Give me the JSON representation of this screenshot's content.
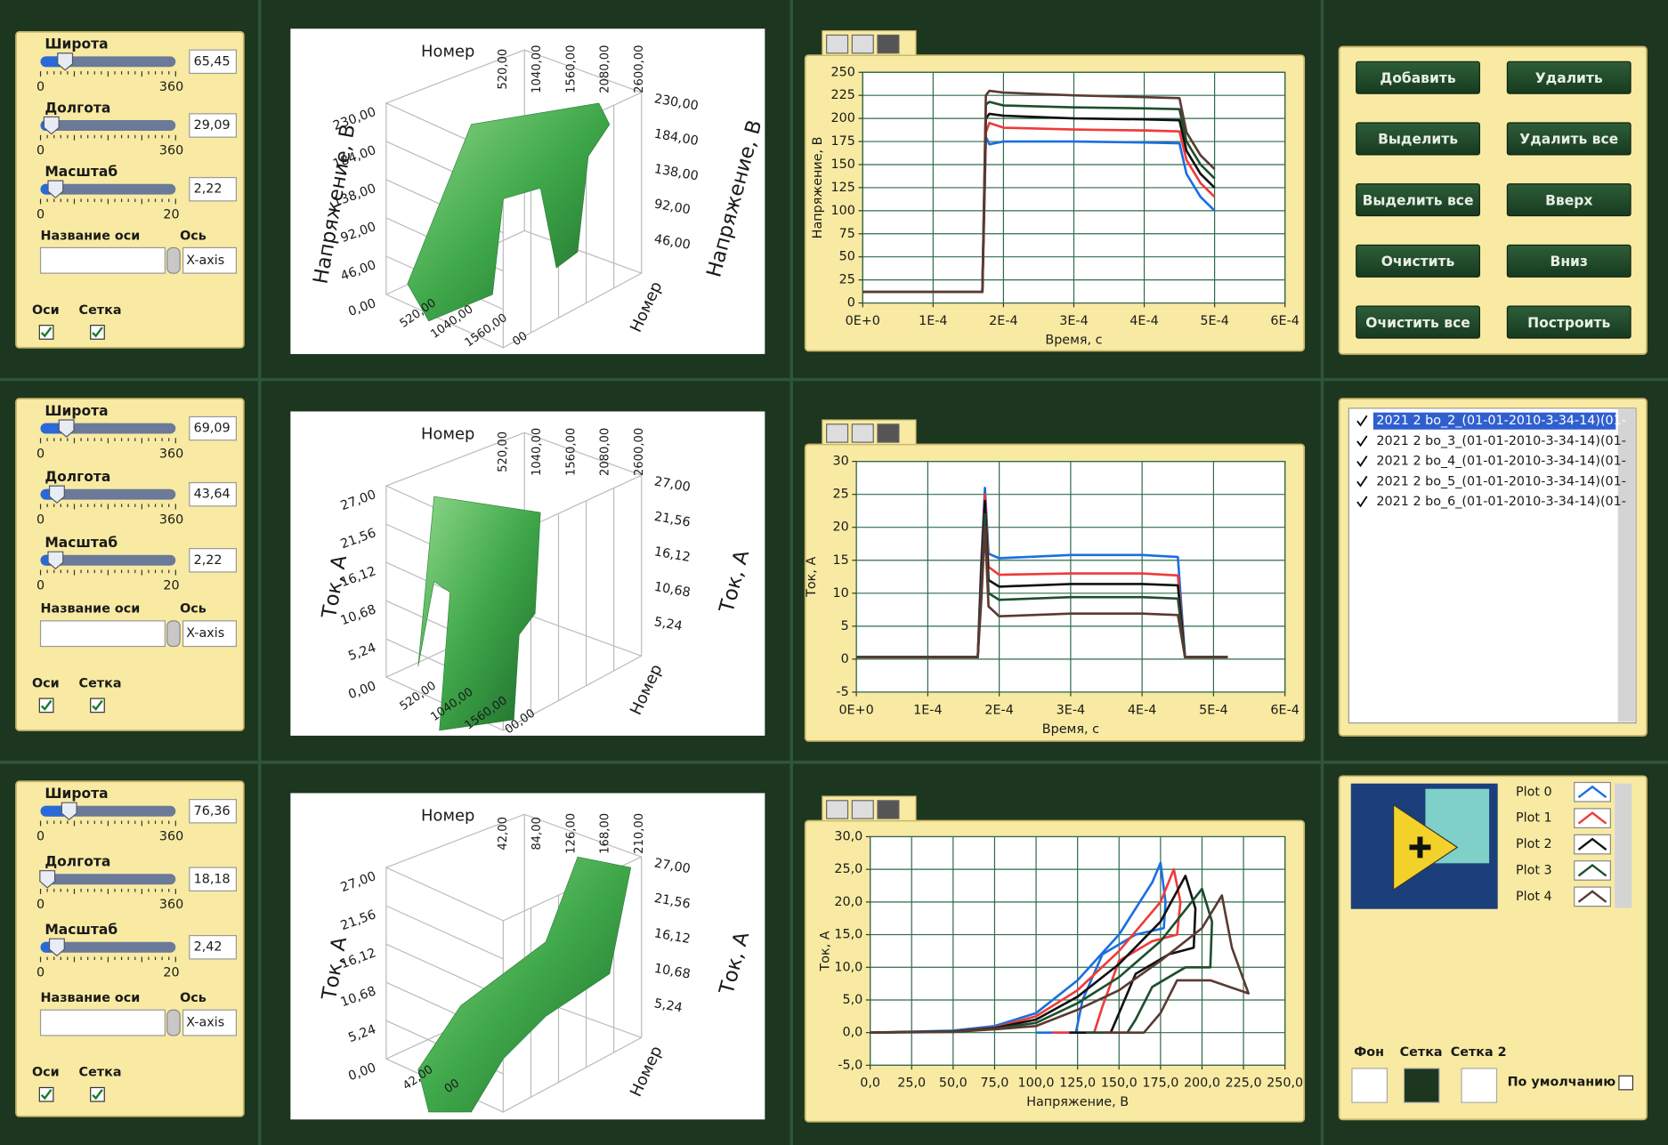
{
  "rows": [
    {
      "controls": {
        "sliders": [
          {
            "name": "Широта",
            "min": 0,
            "max": 360,
            "value": {
              "value": 65.45,
              "label": "65,45"
            }
          },
          {
            "name": "Долгота",
            "min": 0,
            "max": 360,
            "value": {
              "value": 29.09,
              "label": "29,09"
            }
          },
          {
            "name": "Масштаб",
            "min": 0,
            "max": 20,
            "value": {
              "value": 2.22,
              "label": "2,22"
            }
          }
        ],
        "axis_name": "Название оси",
        "axis": "Ось",
        "axis_value": "X-axis",
        "axes_checkbox": "Оси",
        "grid_checkbox": "Сетка"
      },
      "plot3d": {
        "z_title": "Напряжение, В",
        "z_left": [
          "230,00",
          "184,00",
          "138,00",
          "92,00",
          "46,00",
          "0,00"
        ],
        "z_right": [
          "230,00",
          "184,00",
          "138,00",
          "92,00",
          "46,00"
        ],
        "x_title": "Номер",
        "x_top": [
          "520,00",
          "1040,00",
          "1560,00",
          "2080,00",
          "2600,00"
        ],
        "x_bottom": [
          "520,00",
          "1040,00",
          "1560,00",
          "00"
        ]
      },
      "chart": {
        "type": "line",
        "ylabel": "Напряжение, В",
        "xlabel": "Время, с",
        "grid": true,
        "xlim": [
          0,
          0.0006
        ],
        "ylim": [
          0,
          250
        ],
        "xticks": [
          {
            "value": 0,
            "label": "0E+0"
          },
          {
            "value": 0.0001,
            "label": "1E-4"
          },
          {
            "value": 0.0002,
            "label": "2E-4"
          },
          {
            "value": 0.0003,
            "label": "3E-4"
          },
          {
            "value": 0.0004,
            "label": "4E-4"
          },
          {
            "value": 0.0005,
            "label": "5E-4"
          },
          {
            "value": 0.0006,
            "label": "6E-4"
          }
        ],
        "yticks": [
          0,
          25,
          50,
          75,
          100,
          125,
          150,
          175,
          200,
          225,
          250
        ],
        "x": [
          0,
          0.00017,
          0.000175,
          0.00018,
          0.0002,
          0.0003,
          0.0004,
          0.00045,
          0.00046,
          0.00048,
          0.0005
        ],
        "series": [
          {
            "color": "#1a6fe0",
            "values": [
              12,
              12,
              180,
              172,
              175,
              175,
              174,
              173,
              140,
              115,
              100
            ]
          },
          {
            "color": "#f03a3a",
            "values": [
              12,
              12,
              185,
              195,
              190,
              188,
              187,
              186,
              155,
              130,
              115
            ]
          },
          {
            "color": "#111111",
            "values": [
              12,
              12,
              200,
              205,
              203,
              200,
              199,
              198,
              165,
              140,
              125
            ]
          },
          {
            "color": "#1d4f2c",
            "values": [
              12,
              12,
              215,
              218,
              214,
              212,
              211,
              210,
              175,
              150,
              135
            ]
          },
          {
            "color": "#5a3a32",
            "values": [
              12,
              12,
              225,
              230,
              228,
              225,
              223,
              222,
              185,
              160,
              145
            ]
          }
        ]
      }
    },
    {
      "controls": {
        "sliders": [
          {
            "name": "Широта",
            "min": 0,
            "max": 360,
            "value": {
              "value": 69.09,
              "label": "69,09"
            }
          },
          {
            "name": "Долгота",
            "min": 0,
            "max": 360,
            "value": {
              "value": 43.64,
              "label": "43,64"
            }
          },
          {
            "name": "Масштаб",
            "min": 0,
            "max": 20,
            "value": {
              "value": 2.22,
              "label": "2,22"
            }
          }
        ],
        "axis_name": "Название оси",
        "axis": "Ось",
        "axis_value": "X-axis",
        "axes_checkbox": "Оси",
        "grid_checkbox": "Сетка"
      },
      "plot3d": {
        "z_title": "Ток, А",
        "z_left": [
          "27,00",
          "21,56",
          "16,12",
          "10,68",
          "5,24",
          "0,00"
        ],
        "z_right": [
          "27,00",
          "21,56",
          "16,12",
          "10,68",
          "5,24"
        ],
        "x_title": "Номер",
        "x_top": [
          "520,00",
          "1040,00",
          "1560,00",
          "2080,00",
          "2600,00"
        ],
        "x_bottom": [
          "520,00",
          "1040,00",
          "1560,00",
          "00,00"
        ]
      },
      "chart": {
        "type": "line",
        "ylabel": "Ток, А",
        "xlabel": "Время, с",
        "grid": true,
        "xlim": [
          0,
          0.0006
        ],
        "ylim": [
          -5,
          30
        ],
        "xticks": [
          {
            "value": 0,
            "label": "0E+0"
          },
          {
            "value": 0.0001,
            "label": "1E-4"
          },
          {
            "value": 0.0002,
            "label": "2E-4"
          },
          {
            "value": 0.0003,
            "label": "3E-4"
          },
          {
            "value": 0.0004,
            "label": "4E-4"
          },
          {
            "value": 0.0005,
            "label": "5E-4"
          },
          {
            "value": 0.0006,
            "label": "6E-4"
          }
        ],
        "yticks": [
          -5,
          0,
          5,
          10,
          15,
          20,
          25,
          30
        ],
        "x": [
          0,
          0.00017,
          0.000175,
          0.00018,
          0.000185,
          0.0002,
          0.0003,
          0.0004,
          0.00045,
          0.00046,
          0.00052
        ],
        "series": [
          {
            "color": "#1a6fe0",
            "values": [
              0.3,
              0.3,
              15,
              26,
              16,
              15.3,
              15.8,
              15.8,
              15.5,
              0.3,
              0.3
            ]
          },
          {
            "color": "#f03a3a",
            "values": [
              0.3,
              0.3,
              14,
              25,
              14,
              12.8,
              13,
              13,
              12.7,
              0.3,
              0.3
            ]
          },
          {
            "color": "#111111",
            "values": [
              0.3,
              0.3,
              13,
              24,
              12,
              11,
              11.4,
              11.4,
              11.2,
              0.3,
              0.3
            ]
          },
          {
            "color": "#1d4f2c",
            "values": [
              0.3,
              0.3,
              11,
              22,
              10,
              9,
              9.4,
              9.4,
              9.2,
              0.3,
              0.3
            ]
          },
          {
            "color": "#5a3a32",
            "values": [
              0.3,
              0.3,
              9,
              20,
              8,
              6.5,
              6.9,
              6.9,
              6.7,
              0.3,
              0.3
            ]
          }
        ]
      }
    },
    {
      "controls": {
        "sliders": [
          {
            "name": "Широта",
            "min": 0,
            "max": 360,
            "value": {
              "value": 76.36,
              "label": "76,36"
            }
          },
          {
            "name": "Долгота",
            "min": 0,
            "max": 360,
            "value": {
              "value": 18.18,
              "label": "18,18"
            }
          },
          {
            "name": "Масштаб",
            "min": 0,
            "max": 20,
            "value": {
              "value": 2.42,
              "label": "2,42"
            }
          }
        ],
        "axis_name": "Название оси",
        "axis": "Ось",
        "axis_value": "X-axis",
        "axes_checkbox": "Оси",
        "grid_checkbox": "Сетка"
      },
      "plot3d": {
        "z_title": "Ток, А",
        "z_left": [
          "27,00",
          "21,56",
          "16,12",
          "10,68",
          "5,24",
          "0,00"
        ],
        "z_right": [
          "27,00",
          "21,56",
          "16,12",
          "10,68",
          "5,24"
        ],
        "x_title": "Номер",
        "x_top": [
          "42,00",
          "84,00",
          "126,00",
          "168,00",
          "210,00"
        ],
        "x_bottom": [
          "42,00",
          "00"
        ]
      },
      "chart": {
        "type": "scatter-line",
        "ylabel": "Ток, А",
        "xlabel": "Напряжение, В",
        "grid": true,
        "xlim": [
          0,
          250
        ],
        "ylim": [
          -5,
          30
        ],
        "xticks": [
          {
            "value": 0,
            "label": "0,0"
          },
          {
            "value": 25,
            "label": "25,0"
          },
          {
            "value": 50,
            "label": "50,0"
          },
          {
            "value": 75,
            "label": "75,0"
          },
          {
            "value": 100,
            "label": "100,0"
          },
          {
            "value": 125,
            "label": "125,0"
          },
          {
            "value": 150,
            "label": "150,0"
          },
          {
            "value": 175,
            "label": "175,0"
          },
          {
            "value": 200,
            "label": "200,0"
          },
          {
            "value": 225,
            "label": "225,0"
          },
          {
            "value": 250,
            "label": "250,0"
          }
        ],
        "yticks": [
          {
            "value": -5,
            "label": "-5,0"
          },
          {
            "value": 0,
            "label": "0,0"
          },
          {
            "value": 5,
            "label": "5,0"
          },
          {
            "value": 10,
            "label": "10,0"
          },
          {
            "value": 15,
            "label": "15,0"
          },
          {
            "value": 20,
            "label": "20,0"
          },
          {
            "value": 25,
            "label": "25,0"
          },
          {
            "value": 30,
            "label": "30,0"
          }
        ],
        "series": [
          {
            "color": "#1a6fe0",
            "x": [
              0,
              50,
              75,
              100,
              125,
              150,
              170,
              175,
              178,
              177,
              160,
              140,
              128,
              124,
              100
            ],
            "values": [
              0,
              0.3,
              1,
              3,
              8,
              15,
              23,
              26,
              20,
              16,
              15,
              12,
              5,
              0,
              0
            ]
          },
          {
            "color": "#f03a3a",
            "x": [
              0,
              50,
              75,
              100,
              125,
              150,
              175,
              183,
              187,
              185,
              170,
              150,
              140,
              135,
              110
            ],
            "values": [
              0,
              0.2,
              0.8,
              2.5,
              6.5,
              12.5,
              20,
              25,
              20,
              15,
              14,
              11,
              4,
              0,
              0
            ]
          },
          {
            "color": "#111111",
            "x": [
              0,
              50,
              75,
              100,
              125,
              150,
              175,
              190,
              196,
              195,
              180,
              160,
              150,
              145,
              120
            ],
            "values": [
              0,
              0.2,
              0.7,
              2,
              5.5,
              10.5,
              17,
              24,
              19,
              13,
              12,
              9,
              3,
              0,
              0
            ]
          },
          {
            "color": "#1d4f2c",
            "x": [
              0,
              50,
              75,
              100,
              125,
              150,
              175,
              200,
              206,
              205,
              190,
              170,
              160,
              155,
              130
            ],
            "values": [
              0,
              0.2,
              0.6,
              1.5,
              4.5,
              8.5,
              14,
              22,
              17,
              10,
              10,
              7,
              2,
              0,
              0
            ]
          },
          {
            "color": "#5a3a32",
            "x": [
              0,
              50,
              75,
              100,
              125,
              150,
              175,
              200,
              212,
              218,
              228,
              205,
              185,
              175,
              165,
              140
            ],
            "values": [
              0,
              0.1,
              0.5,
              1,
              3.5,
              6.5,
              11,
              16,
              21,
              13,
              6,
              8,
              8,
              3,
              0,
              0
            ]
          }
        ]
      }
    }
  ],
  "buttons": [
    "Добавить",
    "Удалить",
    "Выделить",
    "Удалить все",
    "Выделить все",
    "Вверх",
    "Очистить",
    "Вниз",
    "Очистить все",
    "Построить"
  ],
  "list": [
    "2021 2 bo_2_(01-01-2010-3-34-14)(01-",
    "2021 2 bo_3_(01-01-2010-3-34-14)(01-",
    "2021 2 bo_4_(01-01-2010-3-34-14)(01-",
    "2021 2 bo_5_(01-01-2010-3-34-14)(01-",
    "2021 2 bo_6_(01-01-2010-3-34-14)(01-"
  ],
  "legend": {
    "entries": [
      {
        "name": "Plot 0",
        "color": "#1a6fe0"
      },
      {
        "name": "Plot 1",
        "color": "#f03a3a"
      },
      {
        "name": "Plot 2",
        "color": "#111111"
      },
      {
        "name": "Plot 3",
        "color": "#1d4f2c"
      },
      {
        "name": "Plot 4",
        "color": "#5a3a32"
      }
    ],
    "colors": [
      {
        "name": "Фон",
        "color": "#ffffff"
      },
      {
        "name": "Сетка",
        "color": "#1c3620"
      },
      {
        "name": "Сетка 2",
        "color": "#ffffff"
      }
    ],
    "default_checkbox": "По умолчанию"
  }
}
